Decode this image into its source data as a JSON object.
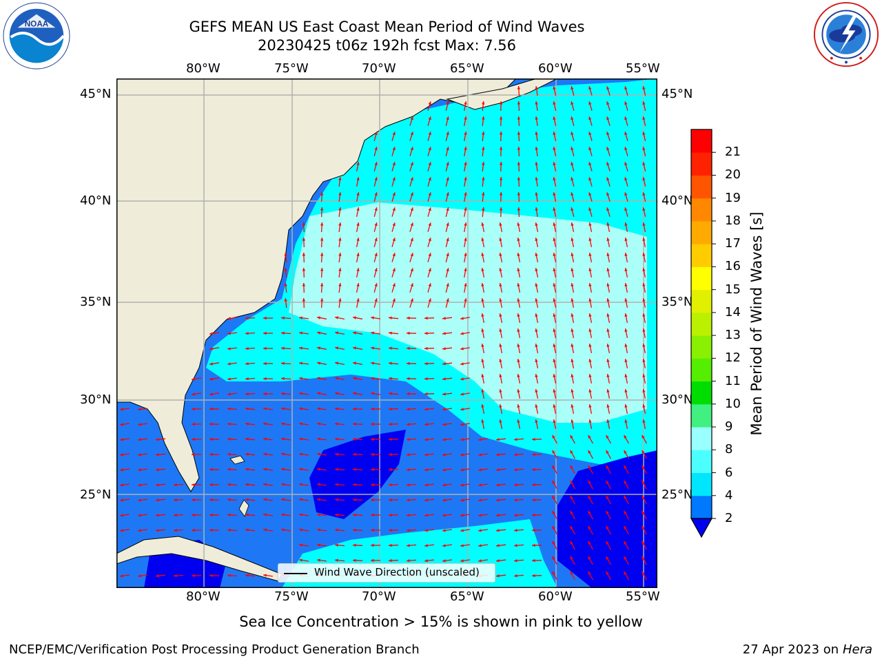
{
  "header": {
    "title_line1": "GEFS MEAN US East Coast Mean Period of Wind Waves",
    "title_line2": "20230425 t06z 192h fcst   Max: 7.56"
  },
  "logos": {
    "left": "noaa-logo",
    "right": "nws-logo"
  },
  "map": {
    "lon_labels": [
      "80°W",
      "75°W",
      "70°W",
      "65°W",
      "60°W",
      "55°W"
    ],
    "lat_labels": [
      "45°N",
      "40°N",
      "35°N",
      "30°N",
      "25°N"
    ],
    "legend_text": "Wind Wave Direction (unscaled)",
    "colors": {
      "land": "#efedd9",
      "deep_blue": "#0000f0",
      "mid_blue": "#1e78f5",
      "cyan": "#00ffff",
      "light_cyan": "#aafff8",
      "arrow": "#ff0000",
      "grid": "#b0b0b0"
    }
  },
  "colorbar": {
    "label": "Mean Period of Wind Waves [s]",
    "ticks": [
      "2",
      "4",
      "6",
      "8",
      "9",
      "10",
      "11",
      "12",
      "13",
      "14",
      "15",
      "16",
      "17",
      "18",
      "19",
      "20",
      "21"
    ],
    "colors": [
      "#0078ff",
      "#00e6ff",
      "#4cffff",
      "#99ffff",
      "#40f080",
      "#00dd00",
      "#55ee00",
      "#88f000",
      "#bbf000",
      "#e0f000",
      "#ffff00",
      "#ffcc00",
      "#ffaa00",
      "#ff8800",
      "#ff5500",
      "#ff2200",
      "#ff0000"
    ],
    "extend_color": "#0000f0"
  },
  "footer": {
    "sea_ice_note": "Sea Ice Concentration > 15% is shown in pink to yellow",
    "credit": "NCEP/EMC/Verification Post Processing Product Generation Branch",
    "date": "27 Apr 2023 on",
    "machine": "Hera"
  }
}
